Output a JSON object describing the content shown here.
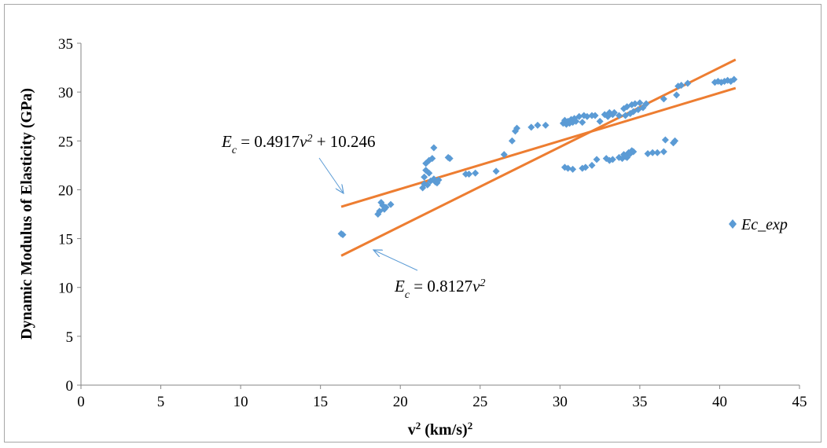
{
  "chart_data": {
    "type": "scatter",
    "title": "",
    "xlabel": "v² (km/s)²",
    "ylabel": "Dynamic Modulus of Elasticity (GPa)",
    "xlim": [
      0,
      45
    ],
    "ylim": [
      0,
      35
    ],
    "x_ticks": [
      0,
      5,
      10,
      15,
      20,
      25,
      30,
      35,
      40,
      45
    ],
    "y_ticks": [
      0,
      5,
      10,
      15,
      20,
      25,
      30,
      35
    ],
    "grid": false,
    "legend_position": "right",
    "colors": {
      "points": "#5b9bd5",
      "fits": "#ed7d31",
      "arrows": "#5b9bd5"
    },
    "series": [
      {
        "name": "Ec_exp",
        "marker": "diamond",
        "points": [
          [
            16.3,
            15.5
          ],
          [
            16.4,
            15.4
          ],
          [
            18.6,
            17.5
          ],
          [
            18.7,
            17.8
          ],
          [
            18.8,
            18.7
          ],
          [
            18.9,
            18.4
          ],
          [
            19.0,
            18.0
          ],
          [
            19.1,
            18.2
          ],
          [
            19.4,
            18.5
          ],
          [
            21.4,
            20.2
          ],
          [
            21.5,
            20.6
          ],
          [
            21.5,
            21.3
          ],
          [
            21.6,
            22.0
          ],
          [
            21.6,
            22.7
          ],
          [
            21.7,
            20.5
          ],
          [
            21.8,
            23.0
          ],
          [
            21.8,
            21.7
          ],
          [
            21.9,
            20.9
          ],
          [
            22.0,
            23.2
          ],
          [
            22.1,
            24.3
          ],
          [
            22.1,
            21.1
          ],
          [
            22.2,
            20.8
          ],
          [
            22.3,
            20.7
          ],
          [
            22.4,
            21.0
          ],
          [
            23.0,
            23.3
          ],
          [
            23.1,
            23.2
          ],
          [
            24.1,
            21.6
          ],
          [
            24.3,
            21.6
          ],
          [
            24.7,
            21.7
          ],
          [
            26.0,
            21.9
          ],
          [
            26.5,
            23.6
          ],
          [
            27.0,
            25.0
          ],
          [
            27.2,
            26.0
          ],
          [
            27.3,
            26.3
          ],
          [
            28.2,
            26.4
          ],
          [
            28.6,
            26.6
          ],
          [
            29.1,
            26.6
          ],
          [
            30.3,
            22.3
          ],
          [
            30.5,
            22.2
          ],
          [
            30.8,
            22.1
          ],
          [
            31.4,
            22.2
          ],
          [
            31.6,
            22.3
          ],
          [
            32.0,
            22.5
          ],
          [
            32.3,
            23.1
          ],
          [
            32.9,
            23.2
          ],
          [
            33.1,
            23.0
          ],
          [
            33.3,
            23.1
          ],
          [
            33.7,
            23.3
          ],
          [
            33.9,
            23.2
          ],
          [
            34.0,
            23.6
          ],
          [
            34.1,
            23.4
          ],
          [
            34.2,
            23.3
          ],
          [
            34.3,
            23.8
          ],
          [
            34.4,
            23.7
          ],
          [
            34.5,
            24.0
          ],
          [
            34.6,
            23.9
          ],
          [
            35.5,
            23.7
          ],
          [
            35.8,
            23.8
          ],
          [
            36.1,
            23.8
          ],
          [
            36.5,
            23.9
          ],
          [
            36.6,
            25.1
          ],
          [
            37.1,
            24.8
          ],
          [
            37.2,
            25.0
          ],
          [
            30.2,
            26.8
          ],
          [
            30.3,
            27.1
          ],
          [
            30.4,
            26.7
          ],
          [
            30.5,
            27.0
          ],
          [
            30.6,
            26.8
          ],
          [
            30.7,
            27.2
          ],
          [
            30.8,
            26.9
          ],
          [
            30.9,
            27.3
          ],
          [
            31.0,
            27.0
          ],
          [
            31.2,
            27.5
          ],
          [
            31.4,
            26.9
          ],
          [
            31.5,
            27.6
          ],
          [
            31.7,
            27.5
          ],
          [
            32.0,
            27.6
          ],
          [
            32.2,
            27.6
          ],
          [
            32.5,
            27.0
          ],
          [
            32.8,
            27.7
          ],
          [
            33.0,
            27.5
          ],
          [
            33.1,
            27.9
          ],
          [
            33.3,
            27.7
          ],
          [
            33.4,
            27.9
          ],
          [
            33.7,
            27.6
          ],
          [
            34.0,
            28.3
          ],
          [
            34.1,
            27.6
          ],
          [
            34.2,
            28.5
          ],
          [
            34.4,
            27.8
          ],
          [
            34.5,
            28.7
          ],
          [
            34.6,
            28.0
          ],
          [
            34.7,
            28.8
          ],
          [
            34.9,
            28.2
          ],
          [
            35.0,
            28.9
          ],
          [
            35.2,
            28.4
          ],
          [
            35.4,
            28.8
          ],
          [
            36.5,
            29.3
          ],
          [
            37.3,
            29.7
          ],
          [
            37.4,
            30.6
          ],
          [
            37.6,
            30.7
          ],
          [
            38.0,
            30.9
          ],
          [
            39.7,
            31.0
          ],
          [
            39.9,
            31.1
          ],
          [
            40.1,
            31.0
          ],
          [
            40.3,
            31.1
          ],
          [
            40.5,
            31.2
          ],
          [
            40.7,
            31.1
          ],
          [
            40.9,
            31.3
          ]
        ]
      }
    ],
    "fit_lines": [
      {
        "slope": 0.4917,
        "intercept": 10.246,
        "x_range": [
          16.3,
          41.0
        ]
      },
      {
        "slope": 0.8127,
        "intercept": 0,
        "x_range": [
          16.3,
          41.0
        ]
      }
    ],
    "annotations": [
      {
        "id": "eq1",
        "var": "E",
        "sub": "c",
        "prefix": " = 0.4917",
        "v": "v",
        "sup": "2",
        "suffix": " + 10.246"
      },
      {
        "id": "eq2",
        "var": "E",
        "sub": "c",
        "prefix": " = 0.8127",
        "v": "v",
        "sup": "2",
        "suffix": ""
      }
    ]
  }
}
